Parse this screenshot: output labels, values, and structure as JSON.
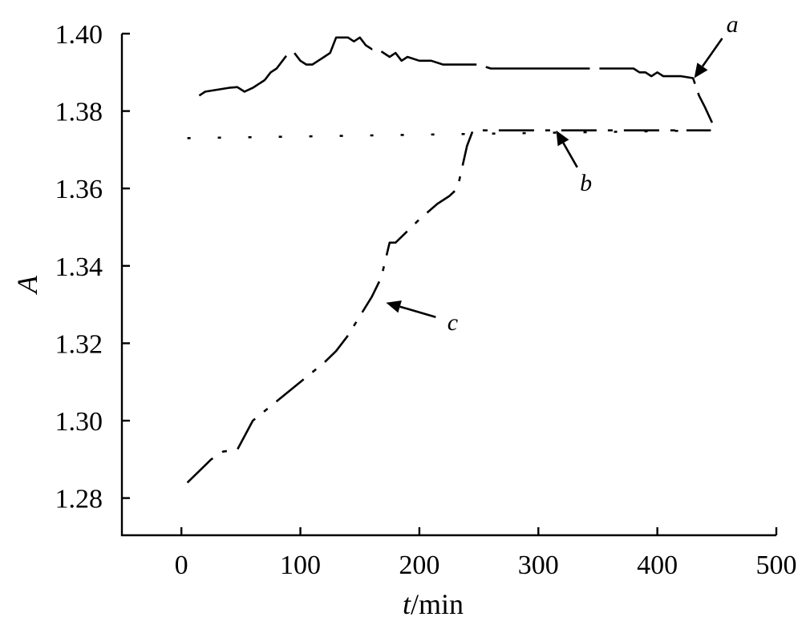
{
  "chart_data": {
    "type": "line",
    "title": "",
    "xlabel": {
      "italic": "t",
      "rest": "/min"
    },
    "ylabel": "A",
    "xlim": [
      -50,
      500
    ],
    "ylim": [
      1.27,
      1.4
    ],
    "xticks": [
      0,
      100,
      200,
      300,
      400,
      500
    ],
    "yticks": [
      1.28,
      1.3,
      1.32,
      1.34,
      1.36,
      1.38,
      1.4
    ],
    "ytick_labels": [
      "1.28",
      "1.30",
      "1.32",
      "1.34",
      "1.36",
      "1.38",
      "1.40"
    ],
    "grid": false,
    "series": [
      {
        "name": "a",
        "style": "long-dash",
        "x": [
          15,
          20,
          30,
          40,
          47,
          53,
          60,
          65,
          70,
          75,
          80,
          85,
          90,
          95,
          100,
          105,
          110,
          115,
          120,
          125,
          130,
          135,
          140,
          145,
          150,
          155,
          160,
          165,
          170,
          175,
          180,
          185,
          190,
          200,
          210,
          220,
          230,
          240,
          250,
          260,
          280,
          300,
          320,
          340,
          360,
          380,
          385,
          390,
          395,
          400,
          405,
          410,
          420,
          430,
          435,
          440,
          446
        ],
        "y": [
          1.384,
          1.385,
          1.3855,
          1.386,
          1.3862,
          1.385,
          1.386,
          1.387,
          1.388,
          1.39,
          1.391,
          1.393,
          1.395,
          1.395,
          1.393,
          1.392,
          1.392,
          1.393,
          1.394,
          1.395,
          1.399,
          1.399,
          1.399,
          1.398,
          1.399,
          1.397,
          1.396,
          1.396,
          1.395,
          1.394,
          1.395,
          1.393,
          1.394,
          1.393,
          1.393,
          1.392,
          1.392,
          1.392,
          1.392,
          1.391,
          1.391,
          1.391,
          1.391,
          1.391,
          1.391,
          1.391,
          1.39,
          1.39,
          1.389,
          1.39,
          1.389,
          1.389,
          1.389,
          1.3885,
          1.384,
          1.381,
          1.377
        ]
      },
      {
        "name": "b",
        "style": "dotted",
        "x": [
          5,
          445
        ],
        "y": [
          1.373,
          1.375
        ]
      },
      {
        "name": "c",
        "style": "dash-dot",
        "x": [
          5,
          25,
          35,
          47,
          60,
          80,
          100,
          120,
          130,
          140,
          150,
          160,
          168,
          175,
          180,
          190,
          200,
          215,
          225,
          232,
          240,
          245,
          445
        ],
        "y": [
          1.284,
          1.29,
          1.292,
          1.2925,
          1.3,
          1.305,
          1.31,
          1.315,
          1.318,
          1.322,
          1.327,
          1.332,
          1.337,
          1.346,
          1.346,
          1.349,
          1.352,
          1.356,
          1.358,
          1.36,
          1.371,
          1.375,
          1.375
        ]
      }
    ],
    "annotations": [
      {
        "label": "a",
        "target": [
          431,
          1.3885
        ],
        "text_at": [
          463,
          1.4025
        ]
      },
      {
        "label": "b",
        "target": [
          315,
          1.375
        ],
        "text_at": [
          340,
          1.3615
        ]
      },
      {
        "label": "c",
        "target": [
          172,
          1.3305
        ],
        "text_at": [
          228,
          1.3255
        ]
      }
    ]
  }
}
